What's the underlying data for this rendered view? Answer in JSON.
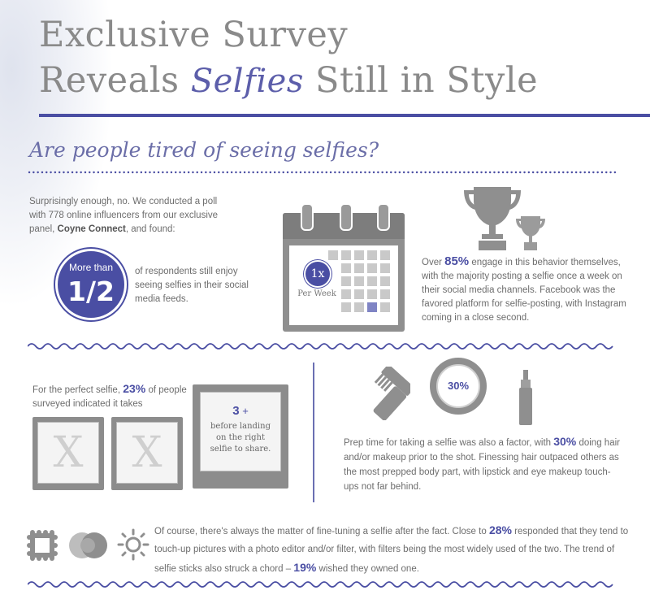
{
  "header": {
    "title_line1": "Exclusive Survey",
    "title_line2_a": "Reveals",
    "title_line2_script": "Selfies",
    "title_line2_b": "Still in Style"
  },
  "section1": {
    "heading": "Are people tired of seeing selfies?",
    "intro_a": "Surprisingly enough, no. We conducted a poll with 778 online influencers from our exclusive panel, ",
    "intro_bold": "Coyne Connect",
    "intro_b": ", and found:",
    "badge_top": "More than",
    "badge_fraction": "1/2",
    "badge_caption": "of respondents still enjoy seeing selfies in their social media feeds.",
    "calendar_circle": "1x",
    "calendar_label": "Per Week",
    "stat_pre": "Over ",
    "stat_value": "85%",
    "stat_post": " engage in this behavior themselves, with the majority posting a selfie once a week on their social media channels. Facebook was the favored platform for selfie-posting, with Instagram coming in a close second."
  },
  "section2": {
    "left_pre": "For the perfect selfie, ",
    "left_value": "23%",
    "left_post": " of people surveyed indicated it takes",
    "photo_mark": "X",
    "photo3_value": "3",
    "photo3_plus": "+",
    "photo3_text": "before landing on the right selfie to share.",
    "compact_label": "30%",
    "right_pre": "Prep time for taking a selfie was also a factor, with ",
    "right_value": "30%",
    "right_post": " doing hair and/or makeup prior to the shot. Finessing hair outpaced others as the most prepped body part, with lipstick and eye makeup touch-ups not far behind."
  },
  "section3": {
    "text_a": "Of course, there's always the matter of fine-tuning a selfie after the fact. Close to ",
    "value_a": "28%",
    "text_b": " responded that they tend to touch-up pictures with a photo editor and/or filter, with filters being the most widely used of the two. The trend of selfie sticks also struck a chord – ",
    "value_b": "19%",
    "text_c": " wished they owned one."
  },
  "colors": {
    "accent": "#4a4ea3",
    "gray_icon": "#8f8f8f",
    "text": "#6d6d6d"
  }
}
